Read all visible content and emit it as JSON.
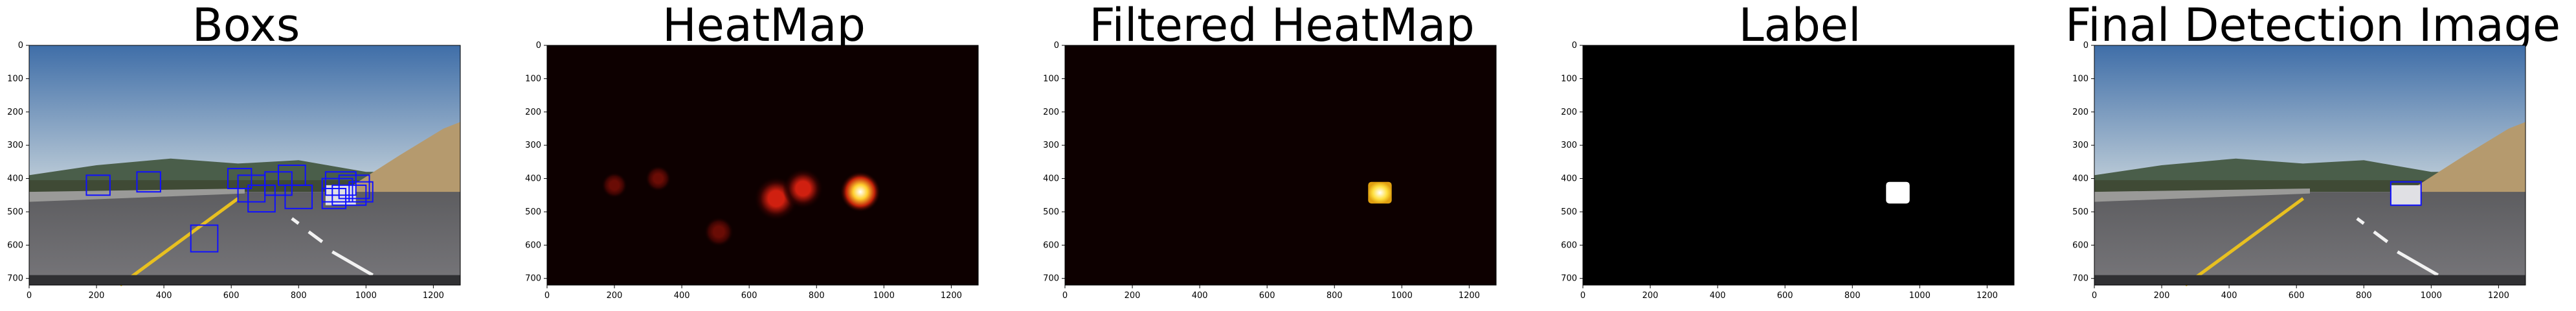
{
  "panels": [
    {
      "title": "Boxs",
      "kind": "road-boxes"
    },
    {
      "title": "HeatMap",
      "kind": "heatmap"
    },
    {
      "title": "Filtered HeatMap",
      "kind": "filtered"
    },
    {
      "title": "Label",
      "kind": "label"
    },
    {
      "title": "Final Detection Image",
      "kind": "road-final"
    }
  ],
  "axes": {
    "x_range": [
      0,
      1280
    ],
    "y_range": [
      0,
      720
    ],
    "x_ticks": [
      "0",
      "200",
      "400",
      "600",
      "800",
      "1000",
      "1200"
    ],
    "y_ticks": [
      "0",
      "100",
      "200",
      "300",
      "400",
      "500",
      "600",
      "700"
    ]
  },
  "colors": {
    "box": "#1010ff",
    "heat_bg": "#0d0000",
    "label_bg": "#000000",
    "label_fg": "#ffffff"
  },
  "detections": {
    "boxes": [
      [
        170,
        390,
        240,
        450
      ],
      [
        320,
        380,
        390,
        440
      ],
      [
        590,
        370,
        660,
        430
      ],
      [
        620,
        390,
        700,
        470
      ],
      [
        650,
        420,
        730,
        500
      ],
      [
        700,
        380,
        780,
        450
      ],
      [
        740,
        360,
        820,
        420
      ],
      [
        760,
        420,
        840,
        490
      ],
      [
        870,
        400,
        960,
        470
      ],
      [
        880,
        380,
        970,
        450
      ],
      [
        900,
        420,
        1000,
        480
      ],
      [
        920,
        390,
        1010,
        460
      ],
      [
        870,
        430,
        940,
        490
      ],
      [
        950,
        410,
        1020,
        470
      ],
      [
        480,
        540,
        560,
        620
      ]
    ],
    "heat_blobs": [
      {
        "x": 200,
        "y": 420,
        "r": 35,
        "level": 0.25
      },
      {
        "x": 330,
        "y": 400,
        "r": 35,
        "level": 0.2
      },
      {
        "x": 510,
        "y": 560,
        "r": 40,
        "level": 0.15
      },
      {
        "x": 680,
        "y": 460,
        "r": 60,
        "level": 0.55
      },
      {
        "x": 760,
        "y": 430,
        "r": 55,
        "level": 0.5
      },
      {
        "x": 930,
        "y": 440,
        "r": 55,
        "level": 1.0
      }
    ],
    "filtered_blob": [
      900,
      410,
      970,
      475
    ],
    "final_box": [
      880,
      410,
      970,
      480
    ]
  }
}
